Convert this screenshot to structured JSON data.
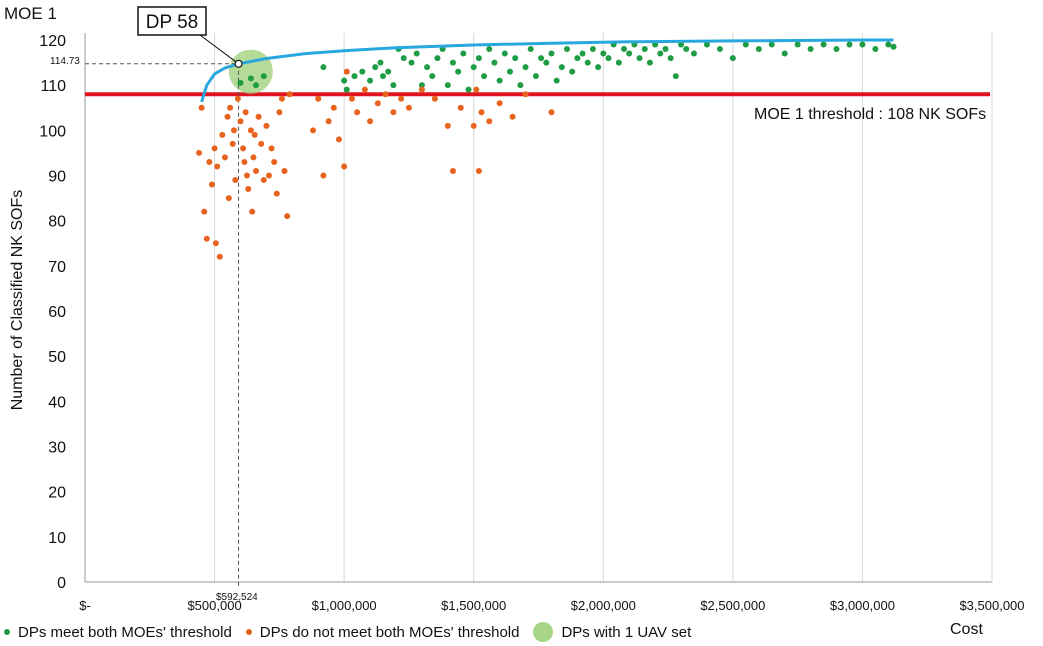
{
  "chart_data": {
    "type": "scatter",
    "title": "MOE 1",
    "xlabel": "Cost",
    "ylabel": "Number of Classified NK SOFs",
    "xlim": [
      0,
      3500000
    ],
    "ylim": [
      0,
      120
    ],
    "x_tick_labels": [
      "$-",
      "$500,000",
      "$1,000,000",
      "$1,500,000",
      "$2,000,000",
      "$2,500,000",
      "$3,000,000",
      "$3,500,000"
    ],
    "x_tick_values": [
      0,
      500000,
      1000000,
      1500000,
      2000000,
      2500000,
      3000000,
      3500000
    ],
    "y_ticks": [
      0,
      10,
      20,
      30,
      40,
      50,
      60,
      70,
      80,
      90,
      100,
      110,
      120
    ],
    "grid": "vertical gridlines",
    "legend_position": "bottom",
    "threshold": {
      "value": 108,
      "label": "MOE 1 threshold : 108 NK SOFs",
      "color": "#e0141e"
    },
    "callout": {
      "label": "DP 58",
      "x": 592524,
      "y": 114.73,
      "x_label": "$592,524",
      "y_label": "114.73"
    },
    "uav_highlight": {
      "x": 640000,
      "y": 113
    },
    "frontier": {
      "color": "#29a8e0",
      "points": [
        [
          450000,
          106.3
        ],
        [
          470000,
          110
        ],
        [
          500000,
          112.5
        ],
        [
          540000,
          113.8
        ],
        [
          592524,
          114.73
        ],
        [
          700000,
          115.9
        ],
        [
          850000,
          117
        ],
        [
          1000000,
          117.6
        ],
        [
          1200000,
          118.3
        ],
        [
          1500000,
          118.9
        ],
        [
          1800000,
          119.3
        ],
        [
          2100000,
          119.6
        ],
        [
          2500000,
          119.8
        ],
        [
          3000000,
          120.0
        ],
        [
          3120000,
          120.0
        ]
      ]
    },
    "series": [
      {
        "name": "DPs meet both MOEs' threshold",
        "color": "#1e9d45",
        "points": [
          [
            600000,
            110.5
          ],
          [
            640000,
            111.5
          ],
          [
            660000,
            110
          ],
          [
            690000,
            112
          ],
          [
            920000,
            114
          ],
          [
            1000000,
            111
          ],
          [
            1010000,
            109
          ],
          [
            1040000,
            112
          ],
          [
            1070000,
            113
          ],
          [
            1100000,
            111
          ],
          [
            1120000,
            114
          ],
          [
            1140000,
            115
          ],
          [
            1150000,
            112
          ],
          [
            1170000,
            113
          ],
          [
            1190000,
            110
          ],
          [
            1210000,
            118
          ],
          [
            1230000,
            116
          ],
          [
            1260000,
            115
          ],
          [
            1280000,
            117
          ],
          [
            1300000,
            110
          ],
          [
            1320000,
            114
          ],
          [
            1340000,
            112
          ],
          [
            1360000,
            116
          ],
          [
            1380000,
            118
          ],
          [
            1400000,
            110
          ],
          [
            1420000,
            115
          ],
          [
            1440000,
            113
          ],
          [
            1460000,
            117
          ],
          [
            1480000,
            109
          ],
          [
            1500000,
            114
          ],
          [
            1520000,
            116
          ],
          [
            1540000,
            112
          ],
          [
            1560000,
            118
          ],
          [
            1580000,
            115
          ],
          [
            1600000,
            111
          ],
          [
            1620000,
            117
          ],
          [
            1640000,
            113
          ],
          [
            1660000,
            116
          ],
          [
            1680000,
            110
          ],
          [
            1700000,
            114
          ],
          [
            1720000,
            118
          ],
          [
            1740000,
            112
          ],
          [
            1760000,
            116
          ],
          [
            1780000,
            115
          ],
          [
            1800000,
            117
          ],
          [
            1820000,
            111
          ],
          [
            1840000,
            114
          ],
          [
            1860000,
            118
          ],
          [
            1880000,
            113
          ],
          [
            1900000,
            116
          ],
          [
            1920000,
            117
          ],
          [
            1940000,
            115
          ],
          [
            1960000,
            118
          ],
          [
            1980000,
            114
          ],
          [
            2000000,
            117
          ],
          [
            2020000,
            116
          ],
          [
            2040000,
            119
          ],
          [
            2060000,
            115
          ],
          [
            2080000,
            118
          ],
          [
            2100000,
            117
          ],
          [
            2120000,
            119
          ],
          [
            2140000,
            116
          ],
          [
            2160000,
            118
          ],
          [
            2180000,
            115
          ],
          [
            2200000,
            119
          ],
          [
            2220000,
            117
          ],
          [
            2240000,
            118
          ],
          [
            2260000,
            116
          ],
          [
            2280000,
            112
          ],
          [
            2300000,
            119
          ],
          [
            2320000,
            118
          ],
          [
            2350000,
            117
          ],
          [
            2400000,
            119
          ],
          [
            2450000,
            118
          ],
          [
            2500000,
            116
          ],
          [
            2550000,
            119
          ],
          [
            2600000,
            118
          ],
          [
            2650000,
            119
          ],
          [
            2700000,
            117
          ],
          [
            2750000,
            119
          ],
          [
            2800000,
            118
          ],
          [
            2850000,
            119
          ],
          [
            2900000,
            118
          ],
          [
            2950000,
            119
          ],
          [
            3000000,
            119
          ],
          [
            3050000,
            118
          ],
          [
            3100000,
            119
          ],
          [
            3120000,
            118.5
          ]
        ]
      },
      {
        "name": "DPs do not meet both MOEs' threshold",
        "color": "#e8641e",
        "points": [
          [
            440000,
            95
          ],
          [
            450000,
            105
          ],
          [
            460000,
            82
          ],
          [
            470000,
            76
          ],
          [
            480000,
            93
          ],
          [
            490000,
            88
          ],
          [
            500000,
            96
          ],
          [
            505000,
            75
          ],
          [
            510000,
            92
          ],
          [
            520000,
            72
          ],
          [
            530000,
            99
          ],
          [
            540000,
            94
          ],
          [
            550000,
            103
          ],
          [
            555000,
            85
          ],
          [
            560000,
            105
          ],
          [
            570000,
            97
          ],
          [
            575000,
            100
          ],
          [
            580000,
            89
          ],
          [
            590000,
            107
          ],
          [
            600000,
            102
          ],
          [
            610000,
            96
          ],
          [
            615000,
            93
          ],
          [
            620000,
            104
          ],
          [
            625000,
            90
          ],
          [
            630000,
            87
          ],
          [
            640000,
            100
          ],
          [
            645000,
            82
          ],
          [
            650000,
            94
          ],
          [
            655000,
            99
          ],
          [
            660000,
            91
          ],
          [
            670000,
            103
          ],
          [
            680000,
            97
          ],
          [
            690000,
            89
          ],
          [
            700000,
            101
          ],
          [
            710000,
            90
          ],
          [
            720000,
            96
          ],
          [
            730000,
            93
          ],
          [
            740000,
            86
          ],
          [
            750000,
            104
          ],
          [
            760000,
            107
          ],
          [
            770000,
            91
          ],
          [
            780000,
            81
          ],
          [
            790000,
            108
          ],
          [
            880000,
            100
          ],
          [
            900000,
            107
          ],
          [
            920000,
            90
          ],
          [
            940000,
            102
          ],
          [
            960000,
            105
          ],
          [
            980000,
            98
          ],
          [
            1000000,
            92
          ],
          [
            1010000,
            113
          ],
          [
            1030000,
            107
          ],
          [
            1050000,
            104
          ],
          [
            1080000,
            109
          ],
          [
            1100000,
            102
          ],
          [
            1130000,
            106
          ],
          [
            1160000,
            108
          ],
          [
            1190000,
            104
          ],
          [
            1220000,
            107
          ],
          [
            1250000,
            105
          ],
          [
            1300000,
            109
          ],
          [
            1350000,
            107
          ],
          [
            1400000,
            101
          ],
          [
            1420000,
            91
          ],
          [
            1450000,
            105
          ],
          [
            1500000,
            101
          ],
          [
            1510000,
            109
          ],
          [
            1530000,
            104
          ],
          [
            1560000,
            102
          ],
          [
            1600000,
            106
          ],
          [
            1650000,
            103
          ],
          [
            1700000,
            108
          ],
          [
            1800000,
            104
          ],
          [
            1520000,
            91
          ]
        ]
      }
    ],
    "uav_series_name": "DPs with 1 UAV set",
    "uav_color": "#a7d585"
  }
}
